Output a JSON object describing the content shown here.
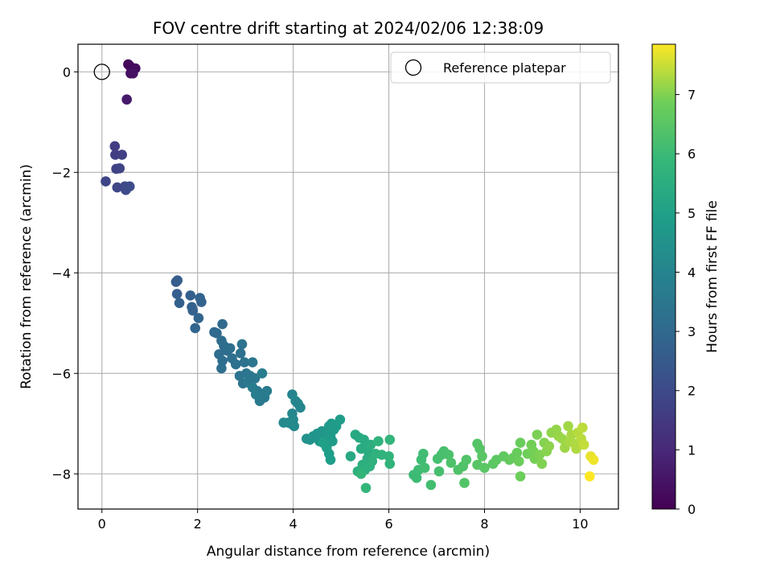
{
  "chart_data": {
    "type": "scatter",
    "title": "FOV centre drift starting at 2024/02/06 12:38:09",
    "xlabel": "Angular distance from reference (arcmin)",
    "ylabel": "Rotation from reference (arcmin)",
    "xlim": [
      -0.5,
      10.8
    ],
    "ylim": [
      -8.7,
      0.55
    ],
    "x_ticks": [
      0,
      2,
      4,
      6,
      8,
      10
    ],
    "y_ticks": [
      0,
      -2,
      -4,
      -6,
      -8
    ],
    "x_tick_labels": [
      "0",
      "2",
      "4",
      "6",
      "8",
      "10"
    ],
    "y_tick_labels": [
      "0",
      "−2",
      "−4",
      "−6",
      "−8"
    ],
    "grid": true,
    "legend": {
      "position": "top-right",
      "label": "Reference platepar"
    },
    "reference_point": {
      "x": 0,
      "y": 0
    },
    "colorbar": {
      "label": "Hours from first FF file",
      "range": [
        0,
        7.85
      ],
      "ticks": [
        0,
        1,
        2,
        3,
        4,
        5,
        6,
        7
      ],
      "colormap": "viridis"
    },
    "points": [
      [
        0.55,
        0.15,
        0.1
      ],
      [
        0.58,
        0.12,
        0.2
      ],
      [
        0.7,
        0.07,
        0.3
      ],
      [
        0.6,
        -0.03,
        0.35
      ],
      [
        0.65,
        -0.03,
        0.4
      ],
      [
        0.52,
        -0.55,
        0.6
      ],
      [
        0.27,
        -1.48,
        1.6
      ],
      [
        0.28,
        -1.65,
        1.65
      ],
      [
        0.42,
        -1.65,
        1.7
      ],
      [
        0.3,
        -1.93,
        1.75
      ],
      [
        0.37,
        -1.92,
        1.8
      ],
      [
        0.08,
        -2.18,
        1.85
      ],
      [
        0.32,
        -2.3,
        1.9
      ],
      [
        0.48,
        -2.28,
        1.95
      ],
      [
        0.5,
        -2.35,
        2.0
      ],
      [
        0.58,
        -2.28,
        2.05
      ],
      [
        1.55,
        -4.18,
        2.6
      ],
      [
        1.58,
        -4.15,
        2.62
      ],
      [
        1.57,
        -4.42,
        2.65
      ],
      [
        1.62,
        -4.6,
        2.68
      ],
      [
        1.85,
        -4.45,
        2.7
      ],
      [
        1.88,
        -4.68,
        2.72
      ],
      [
        1.9,
        -4.75,
        2.75
      ],
      [
        2.05,
        -4.5,
        2.78
      ],
      [
        2.08,
        -4.58,
        2.8
      ],
      [
        2.02,
        -4.9,
        2.82
      ],
      [
        1.95,
        -5.1,
        2.85
      ],
      [
        2.35,
        -5.18,
        3.0
      ],
      [
        2.4,
        -5.2,
        3.02
      ],
      [
        2.52,
        -5.02,
        3.05
      ],
      [
        2.5,
        -5.35,
        3.08
      ],
      [
        2.55,
        -5.45,
        3.1
      ],
      [
        2.62,
        -5.55,
        3.12
      ],
      [
        2.45,
        -5.62,
        3.15
      ],
      [
        2.52,
        -5.75,
        3.18
      ],
      [
        2.68,
        -5.5,
        3.2
      ],
      [
        2.72,
        -5.7,
        3.22
      ],
      [
        2.5,
        -5.9,
        3.25
      ],
      [
        2.8,
        -5.82,
        3.28
      ],
      [
        2.9,
        -5.6,
        3.3
      ],
      [
        2.93,
        -5.42,
        3.32
      ],
      [
        2.98,
        -5.78,
        3.35
      ],
      [
        2.88,
        -6.05,
        3.38
      ],
      [
        2.95,
        -6.2,
        3.4
      ],
      [
        3.02,
        -6.0,
        3.42
      ],
      [
        3.1,
        -6.05,
        3.45
      ],
      [
        3.15,
        -5.78,
        3.48
      ],
      [
        3.05,
        -6.18,
        3.5
      ],
      [
        3.2,
        -6.1,
        3.52
      ],
      [
        3.25,
        -6.35,
        3.55
      ],
      [
        3.3,
        -6.55,
        3.58
      ],
      [
        3.28,
        -6.45,
        3.6
      ],
      [
        3.4,
        -6.48,
        3.62
      ],
      [
        3.45,
        -6.35,
        3.65
      ],
      [
        3.35,
        -6.0,
        3.68
      ],
      [
        3.15,
        -6.28,
        3.7
      ],
      [
        3.22,
        -6.42,
        3.72
      ],
      [
        3.98,
        -6.42,
        4.0
      ],
      [
        4.05,
        -6.55,
        4.02
      ],
      [
        4.1,
        -6.6,
        4.05
      ],
      [
        4.15,
        -6.68,
        4.08
      ],
      [
        3.98,
        -6.8,
        4.1
      ],
      [
        4.0,
        -6.92,
        4.12
      ],
      [
        3.9,
        -6.98,
        4.15
      ],
      [
        4.02,
        -7.05,
        4.18
      ],
      [
        3.8,
        -6.98,
        4.2
      ],
      [
        3.95,
        -7.0,
        4.22
      ],
      [
        4.28,
        -7.3,
        4.5
      ],
      [
        4.35,
        -7.32,
        4.52
      ],
      [
        4.42,
        -7.25,
        4.55
      ],
      [
        4.5,
        -7.2,
        4.58
      ],
      [
        4.55,
        -7.35,
        4.6
      ],
      [
        4.6,
        -7.15,
        4.62
      ],
      [
        4.65,
        -7.28,
        4.65
      ],
      [
        4.68,
        -7.4,
        4.68
      ],
      [
        4.72,
        -7.18,
        4.7
      ],
      [
        4.75,
        -7.05,
        4.72
      ],
      [
        4.8,
        -7.0,
        4.75
      ],
      [
        4.78,
        -7.25,
        4.78
      ],
      [
        4.85,
        -7.12,
        4.8
      ],
      [
        4.82,
        -7.35,
        4.82
      ],
      [
        4.9,
        -7.05,
        4.85
      ],
      [
        4.98,
        -6.92,
        4.88
      ],
      [
        4.75,
        -7.6,
        4.9
      ],
      [
        4.78,
        -7.72,
        4.92
      ],
      [
        4.7,
        -7.48,
        4.95
      ],
      [
        4.62,
        -7.38,
        4.98
      ],
      [
        5.2,
        -7.65,
        5.3
      ],
      [
        5.3,
        -7.22,
        5.32
      ],
      [
        5.38,
        -7.28,
        5.35
      ],
      [
        5.42,
        -7.5,
        5.38
      ],
      [
        5.48,
        -7.32,
        5.4
      ],
      [
        5.52,
        -7.45,
        5.42
      ],
      [
        5.58,
        -7.58,
        5.45
      ],
      [
        5.62,
        -7.42,
        5.48
      ],
      [
        5.55,
        -7.7,
        5.5
      ],
      [
        5.45,
        -7.82,
        5.52
      ],
      [
        5.5,
        -7.92,
        5.55
      ],
      [
        5.35,
        -7.95,
        5.58
      ],
      [
        5.6,
        -7.85,
        5.6
      ],
      [
        5.65,
        -7.75,
        5.62
      ],
      [
        5.72,
        -7.6,
        5.65
      ],
      [
        5.78,
        -7.35,
        5.68
      ],
      [
        5.85,
        -7.62,
        5.7
      ],
      [
        6.0,
        -7.65,
        5.72
      ],
      [
        6.02,
        -7.8,
        5.75
      ],
      [
        6.02,
        -7.32,
        5.78
      ],
      [
        5.52,
        -8.28,
        5.8
      ],
      [
        5.42,
        -8.0,
        5.82
      ],
      [
        6.52,
        -8.02,
        6.0
      ],
      [
        6.58,
        -8.08,
        6.02
      ],
      [
        6.62,
        -7.92,
        6.05
      ],
      [
        6.68,
        -7.72,
        6.08
      ],
      [
        6.72,
        -7.6,
        6.1
      ],
      [
        6.75,
        -7.88,
        6.12
      ],
      [
        6.88,
        -8.22,
        6.15
      ],
      [
        7.02,
        -7.7,
        6.18
      ],
      [
        7.05,
        -7.95,
        6.2
      ],
      [
        7.1,
        -7.62,
        6.22
      ],
      [
        7.15,
        -7.55,
        6.25
      ],
      [
        7.25,
        -7.62,
        6.28
      ],
      [
        7.3,
        -7.78,
        6.3
      ],
      [
        7.45,
        -7.92,
        6.32
      ],
      [
        7.55,
        -7.85,
        6.35
      ],
      [
        7.62,
        -7.72,
        6.38
      ],
      [
        7.58,
        -8.18,
        6.4
      ],
      [
        7.85,
        -7.4,
        6.42
      ],
      [
        7.9,
        -7.5,
        6.45
      ],
      [
        7.85,
        -7.82,
        6.48
      ],
      [
        7.95,
        -7.65,
        6.5
      ],
      [
        8.0,
        -7.88,
        6.52
      ],
      [
        8.18,
        -7.8,
        6.55
      ],
      [
        8.25,
        -7.72,
        6.58
      ],
      [
        8.4,
        -7.65,
        6.6
      ],
      [
        8.52,
        -7.72,
        6.7
      ],
      [
        8.6,
        -7.68,
        6.72
      ],
      [
        8.68,
        -7.58,
        6.75
      ],
      [
        8.75,
        -7.38,
        6.78
      ],
      [
        8.72,
        -7.75,
        6.8
      ],
      [
        8.75,
        -8.05,
        6.82
      ],
      [
        8.9,
        -7.6,
        6.85
      ],
      [
        8.98,
        -7.42,
        6.88
      ],
      [
        9.02,
        -7.55,
        6.9
      ],
      [
        9.05,
        -7.7,
        6.92
      ],
      [
        9.1,
        -7.22,
        6.95
      ],
      [
        9.15,
        -7.62,
        6.98
      ],
      [
        9.2,
        -7.8,
        7.0
      ],
      [
        9.25,
        -7.38,
        7.02
      ],
      [
        9.3,
        -7.55,
        7.05
      ],
      [
        9.35,
        -7.45,
        7.08
      ],
      [
        9.4,
        -7.18,
        7.1
      ],
      [
        9.5,
        -7.12,
        7.12
      ],
      [
        9.55,
        -7.25,
        7.15
      ],
      [
        9.62,
        -7.3,
        7.18
      ],
      [
        9.68,
        -7.48,
        7.2
      ],
      [
        9.75,
        -7.05,
        7.22
      ],
      [
        9.78,
        -7.35,
        7.25
      ],
      [
        9.82,
        -7.22,
        7.28
      ],
      [
        9.88,
        -7.4,
        7.3
      ],
      [
        9.92,
        -7.5,
        7.32
      ],
      [
        9.95,
        -7.18,
        7.35
      ],
      [
        10.02,
        -7.3,
        7.38
      ],
      [
        10.05,
        -7.08,
        7.4
      ],
      [
        10.08,
        -7.42,
        7.45
      ],
      [
        10.22,
        -7.65,
        7.7
      ],
      [
        10.28,
        -7.72,
        7.75
      ],
      [
        10.2,
        -8.05,
        7.85
      ]
    ]
  }
}
